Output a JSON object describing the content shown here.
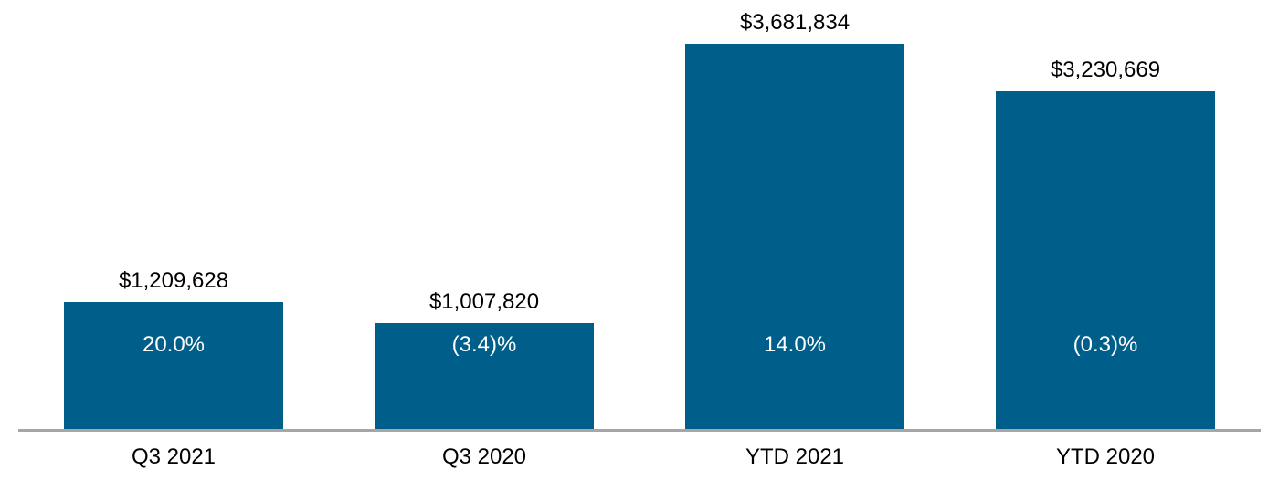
{
  "chart_data": {
    "type": "bar",
    "categories": [
      "Q3 2021",
      "Q3 2020",
      "YTD 2021",
      "YTD 2020"
    ],
    "values": [
      1209628,
      1007820,
      3681834,
      3230669
    ],
    "value_labels": [
      "$1,209,628",
      "$1,007,820",
      "$3,681,834",
      "$3,230,669"
    ],
    "pct_labels": [
      "20.0%",
      "(3.4)%",
      "14.0%",
      "(0.3)%"
    ],
    "title": "",
    "xlabel": "",
    "ylabel": "",
    "ylim": [
      0,
      3681834
    ],
    "grid": false,
    "legend": "none",
    "bar_color": "#005E8A",
    "value_label_color": "#000000",
    "pct_label_color": "#FFFFFF",
    "axis_line_color": "#A6A6A6",
    "background_color": "#FFFFFF"
  }
}
